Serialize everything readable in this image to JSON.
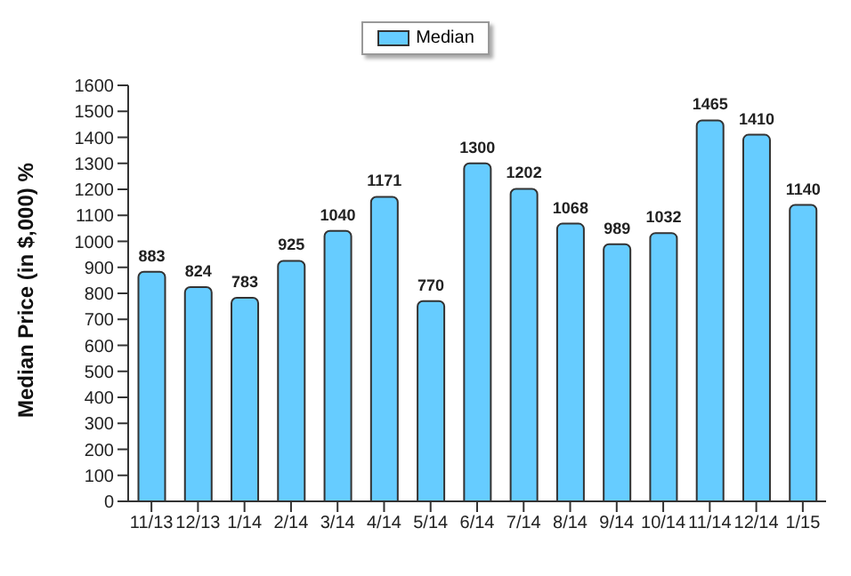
{
  "chart_data": {
    "type": "bar",
    "ylabel": "Median Price (in $,000) %",
    "categories": [
      "11/13",
      "12/13",
      "1/14",
      "2/14",
      "3/14",
      "4/14",
      "5/14",
      "6/14",
      "7/14",
      "8/14",
      "9/14",
      "10/14",
      "11/14",
      "12/14",
      "1/15"
    ],
    "series": [
      {
        "name": "Median",
        "color": "#66ccff",
        "values": [
          883,
          824,
          783,
          925,
          1040,
          1171,
          770,
          1300,
          1202,
          1068,
          989,
          1032,
          1465,
          1410,
          1140
        ]
      }
    ],
    "ylim": [
      0,
      1600
    ],
    "yticks": [
      0,
      100,
      200,
      300,
      400,
      500,
      600,
      700,
      800,
      900,
      1000,
      1100,
      1200,
      1300,
      1400,
      1500,
      1600
    ],
    "data_labels": true,
    "legend": "top",
    "grid": false
  }
}
